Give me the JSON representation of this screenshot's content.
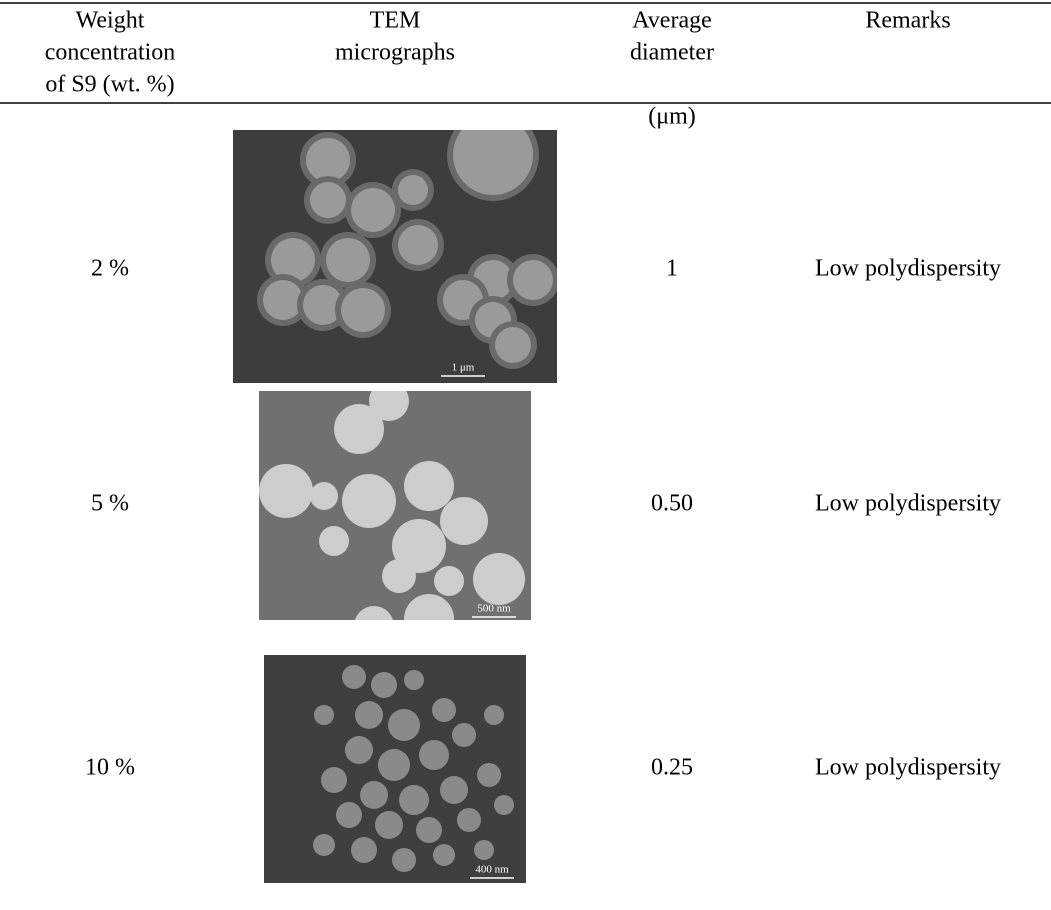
{
  "table": {
    "header": [
      [
        "Weight",
        "concentration",
        "of S9 (wt. %)"
      ],
      [
        "TEM",
        "micrographs"
      ],
      [
        "Average",
        "diameter",
        "(μm)"
      ],
      [
        "Remarks"
      ]
    ],
    "rows": [
      {
        "concentration": "2 %",
        "scale_bar": "1 μm",
        "diameter": "1",
        "remarks": "Low polydispersity"
      },
      {
        "concentration": "5 %",
        "scale_bar": "500 nm",
        "diameter": "0.50",
        "remarks": "Low polydispersity"
      },
      {
        "concentration": "10 %",
        "scale_bar": "400 nm",
        "diameter": "0.25",
        "remarks": "Low polydispersity"
      }
    ]
  }
}
